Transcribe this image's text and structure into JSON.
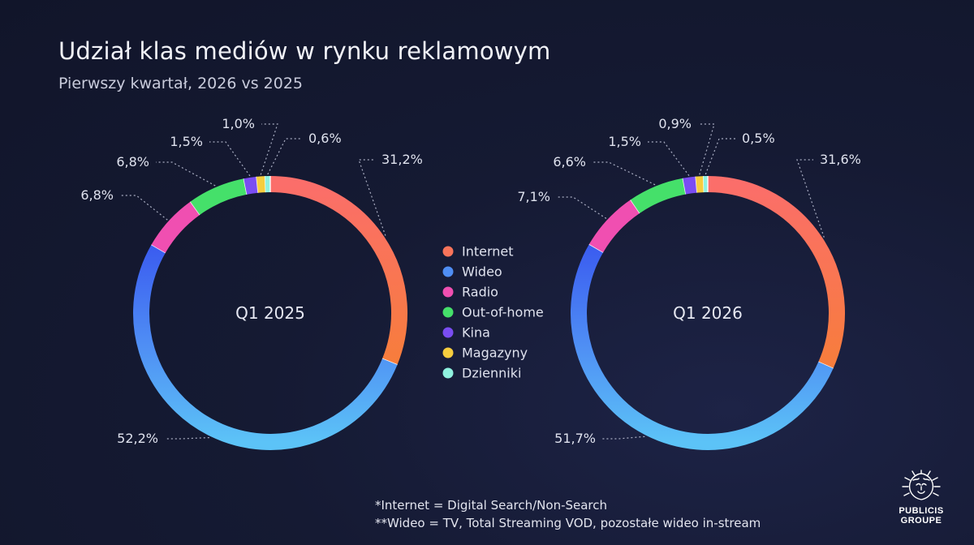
{
  "title": "Udział klas mediów w rynku reklamowym",
  "subtitle": "Pierwszy kwartał, 2026 vs 2025",
  "footnotes": [
    "*Internet = Digital Search/Non-Search",
    "**Wideo = TV, Total Streaming VOD, pozostałe wideo in-stream"
  ],
  "logo": {
    "line1": "PUBLICIS",
    "line2": "GROUPE"
  },
  "chart_data": [
    {
      "type": "pie",
      "center_label": "Q1 2025",
      "categories": [
        "Internet",
        "Wideo",
        "Radio",
        "Out-of-home",
        "Kina",
        "Magazyny",
        "Dzienniki"
      ],
      "values": [
        31.2,
        52.2,
        6.8,
        6.8,
        1.5,
        1.0,
        0.6
      ],
      "labels": [
        "31,2%",
        "52,2%",
        "6,8%",
        "6,8%",
        "1,5%",
        "1,0%",
        "0,6%"
      ]
    },
    {
      "type": "pie",
      "center_label": "Q1 2026",
      "categories": [
        "Internet",
        "Wideo",
        "Radio",
        "Out-of-home",
        "Kina",
        "Magazyny",
        "Dzienniki"
      ],
      "values": [
        31.6,
        51.7,
        7.1,
        6.6,
        1.5,
        0.9,
        0.5
      ],
      "labels": [
        "31,6%",
        "51,7%",
        "7,1%",
        "6,6%",
        "1,5%",
        "0,9%",
        "0,5%"
      ]
    }
  ],
  "legend": {
    "placement": "center",
    "items": [
      {
        "label": "Internet",
        "color": "#f8745a"
      },
      {
        "label": "Wideo",
        "color": "#4f8ef4"
      },
      {
        "label": "Radio",
        "color": "#f04fb1"
      },
      {
        "label": "Out-of-home",
        "color": "#45e06a"
      },
      {
        "label": "Kina",
        "color": "#7a4df2"
      },
      {
        "label": "Magazyny",
        "color": "#f6cd3e"
      },
      {
        "label": "Dzienniki",
        "color": "#8ff2df"
      }
    ]
  }
}
